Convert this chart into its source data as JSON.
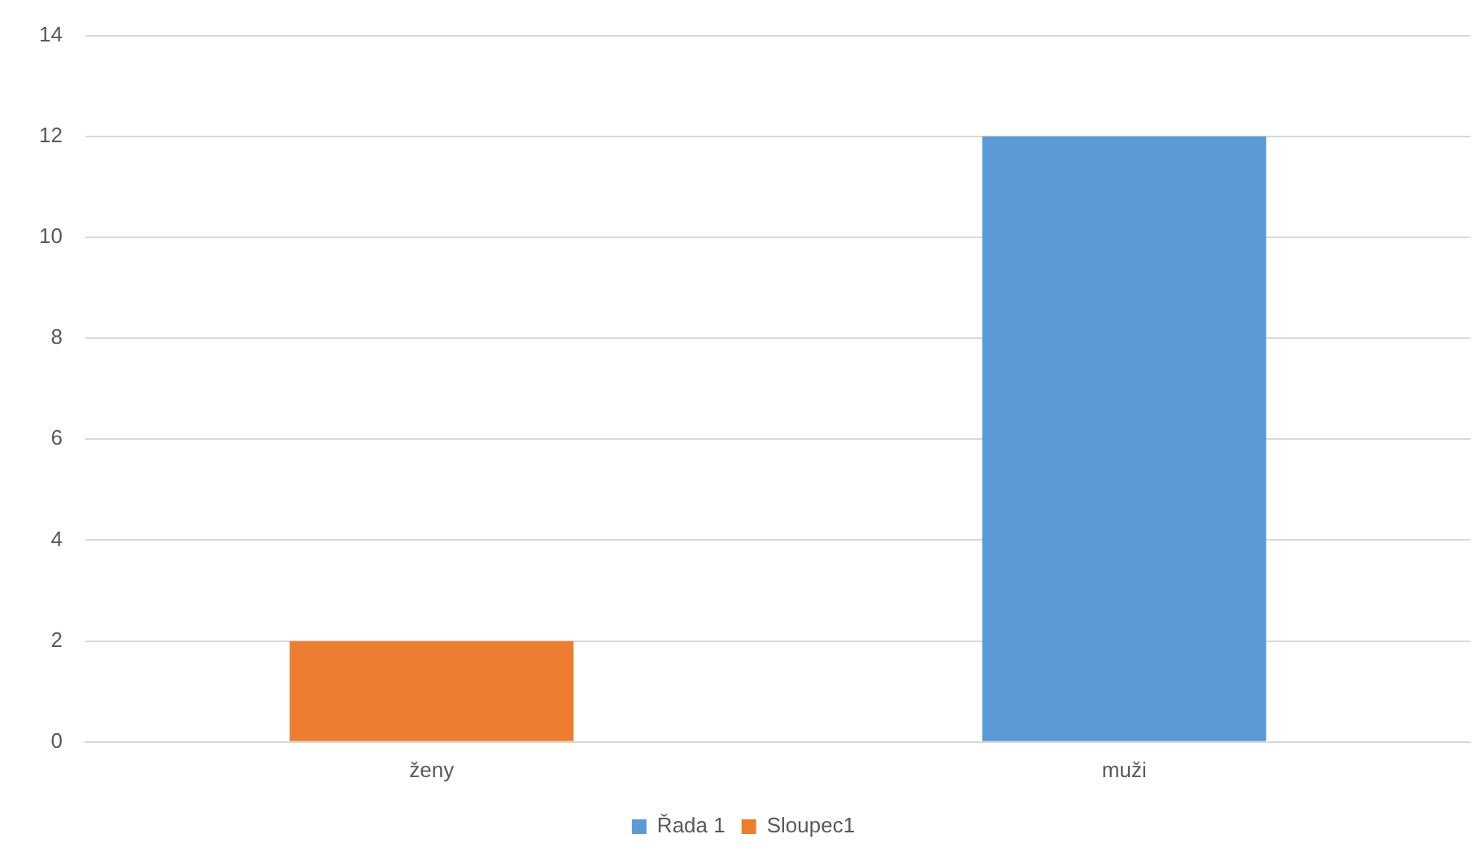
{
  "chart_data": {
    "type": "bar",
    "categories": [
      "ženy",
      "muži"
    ],
    "series": [
      {
        "name": "Řada 1",
        "color": "#5b9bd5",
        "values": [
          null,
          12
        ]
      },
      {
        "name": "Sloupec1",
        "color": "#ed7d31",
        "values": [
          2,
          null
        ]
      }
    ],
    "stacked": true,
    "ylim": [
      0,
      14
    ],
    "yticks": [
      0,
      2,
      4,
      6,
      8,
      10,
      12,
      14
    ],
    "grid": "y",
    "legend": "bottom"
  }
}
